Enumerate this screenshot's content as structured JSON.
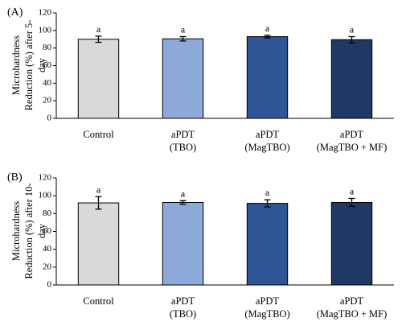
{
  "chart_data": [
    {
      "type": "bar",
      "panel_label": "(A)",
      "categories": [
        [
          "Control"
        ],
        [
          "aPDT",
          "(TBO)"
        ],
        [
          "aPDT",
          "(MagTBO)"
        ],
        [
          "aPDT",
          "(MagTBO + MF)"
        ]
      ],
      "values": [
        90,
        90.5,
        93,
        89.5
      ],
      "errors": [
        3.5,
        2.5,
        1.5,
        3.5
      ],
      "annotations": [
        "a",
        "a",
        "a",
        "a"
      ],
      "ylabel": [
        "Microhardness",
        "Reduction (%) after 5-",
        "day"
      ],
      "ylim": [
        0,
        120
      ],
      "yticks": [
        0,
        20,
        40,
        60,
        80,
        100,
        120
      ],
      "colors": [
        "#d9d9d9",
        "#8eaadb",
        "#2f5597",
        "#1f3864"
      ],
      "grid": false
    },
    {
      "type": "bar",
      "panel_label": "(B)",
      "categories": [
        [
          "Control"
        ],
        [
          "aPDT",
          "(TBO)"
        ],
        [
          "aPDT",
          "(MagTBO)"
        ],
        [
          "aPDT",
          "(MagTBO + MF)"
        ]
      ],
      "values": [
        92,
        92.5,
        91.5,
        92.5
      ],
      "errors": [
        7,
        2,
        4,
        4.5
      ],
      "annotations": [
        "a",
        "a",
        "a",
        "a"
      ],
      "ylabel": [
        "Microhardness",
        "Reduction (%) after 10-",
        "day"
      ],
      "ylim": [
        0,
        120
      ],
      "yticks": [
        0,
        20,
        40,
        60,
        80,
        100,
        120
      ],
      "colors": [
        "#d9d9d9",
        "#8eaadb",
        "#2f5597",
        "#1f3864"
      ],
      "grid": false
    }
  ]
}
